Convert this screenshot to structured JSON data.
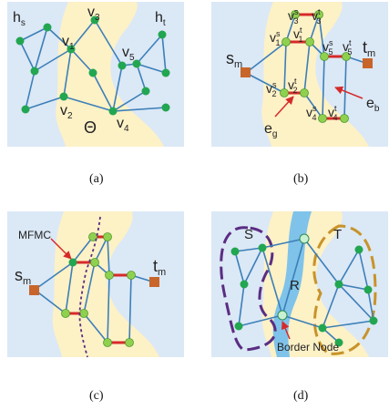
{
  "colors": {
    "background_blue": "#dbe8f6",
    "region_cream": "#fdf1c6",
    "edge_blue": "#3c7fb8",
    "node_green": "#22a651",
    "node_lightgreen": "#8fd14f",
    "terminal_orange": "#c8652a",
    "red": "#d62a2a",
    "purple": "#5a2d82",
    "gold": "#c8932a",
    "river_blue": "#7fc3ea"
  },
  "panels": [
    {
      "caption": "(a)",
      "labels": {
        "hs": "h",
        "hs_sub": "s",
        "ht": "h",
        "ht_sub": "t",
        "theta": "Θ",
        "v1": "v",
        "v1_sub": "1",
        "v2": "v",
        "v2_sub": "2",
        "v3": "v",
        "v3_sub": "3",
        "v4": "v",
        "v4_sub": "4",
        "v5": "v",
        "v5_sub": "5"
      }
    },
    {
      "caption": "(b)",
      "labels": {
        "sm": "s",
        "sm_sub": "m",
        "tm": "t",
        "tm_sub": "m",
        "eg": "e",
        "eg_sub": "g",
        "eb": "e",
        "eb_sub": "b",
        "v": "v",
        "s": "s",
        "t": "t",
        "n1": "1",
        "n2": "2",
        "n3": "3",
        "n4": "4",
        "n5": "5"
      }
    },
    {
      "caption": "(c)",
      "labels": {
        "mfmc": "MFMC",
        "sm": "s",
        "sm_sub": "m",
        "tm": "t",
        "tm_sub": "m"
      }
    },
    {
      "caption": "(d)",
      "labels": {
        "S": "S",
        "T": "T",
        "R": "R",
        "border_node": "Border Node"
      }
    }
  ]
}
